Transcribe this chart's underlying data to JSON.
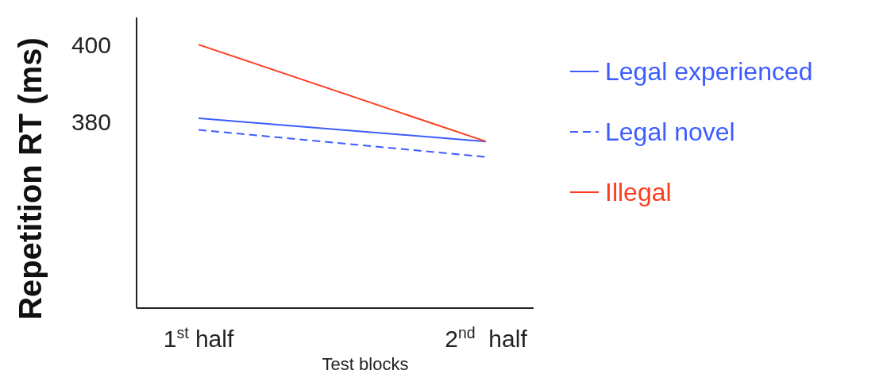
{
  "chart_data": {
    "type": "line",
    "xlabel": "Test blocks",
    "ylabel": "Repetition RT (ms)",
    "categories": [
      "1$^{st}$ half",
      "2$^{nd}$  half"
    ],
    "ylim": [
      332,
      407
    ],
    "yticks": [
      380,
      400
    ],
    "legend": "right",
    "series": [
      {
        "name": "Legal experienced",
        "color": "#3d5cff",
        "values": [
          381,
          375
        ],
        "line_style": "solid"
      },
      {
        "name": "Legal novel",
        "color": "#3d5cff",
        "values": [
          378,
          371
        ],
        "line_style": "dashed"
      },
      {
        "name": "Illegal",
        "color": "#ff3b1f",
        "values": [
          400,
          375
        ],
        "line_style": "solid"
      }
    ]
  }
}
